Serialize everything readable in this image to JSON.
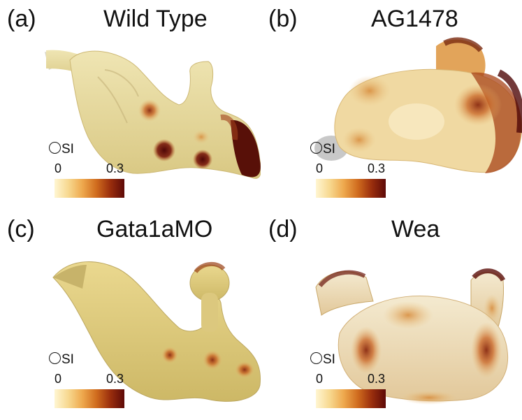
{
  "panels": [
    {
      "letter": "(a)",
      "title": "Wild Type"
    },
    {
      "letter": "(b)",
      "title": "AG1478"
    },
    {
      "letter": "(c)",
      "title": "Gata1aMO"
    },
    {
      "letter": "(d)",
      "title": "Wea"
    }
  ],
  "colorbar": {
    "name": "SI",
    "min": "0",
    "max": "0.3",
    "colors": [
      "#fff6d2",
      "#f7d88f",
      "#eea84d",
      "#d06c1e",
      "#9a2e0d",
      "#5d0a08"
    ]
  }
}
